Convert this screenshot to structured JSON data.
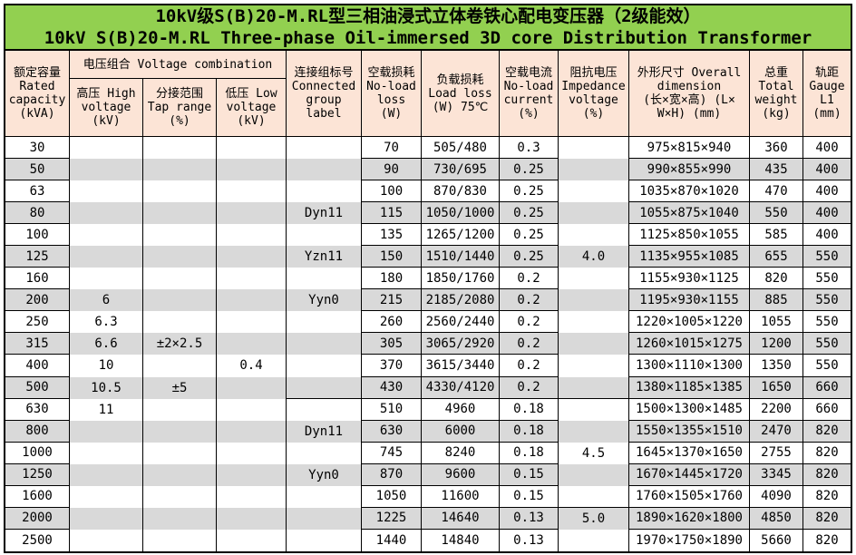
{
  "title": {
    "line1": "10kV级S(B)20-M.RL型三相油浸式立体卷铁心配电变压器（2级能效）",
    "line2": "10kV S(B)20-M.RL Three-phase Oil-immersed 3D core Distribution Transformer"
  },
  "colors": {
    "title_bg": "#92d050",
    "header_bg": "#fce4d6",
    "stripe": "#d9d9d9",
    "border": "#000000",
    "text": "#000000"
  },
  "table": {
    "headers": {
      "rated_capacity": "额定容量\nRated\ncapacity\n(kVA)",
      "voltage_combination": "电压组合 Voltage combination",
      "high_voltage": "高压 High\nvoltage\n(kV)",
      "tap_range": "分接范围\nTap range\n(%)",
      "low_voltage": "低压 Low\nvoltage\n(kV)",
      "connected_group": "连接组标号\nConnected\ngroup\nlabel",
      "no_load_loss": "空载损耗\nNo-load\nloss\n(W)",
      "load_loss": "负载损耗\nLoad loss\n(W) 75℃",
      "no_load_current": "空载电流\nNo-load\ncurrent\n(%)",
      "impedance_voltage": "阻抗电压\nImpedance\nvoltage\n(%)",
      "overall_dimension": "外形尺寸 Overall\ndimension\n(长×宽×高) (L×\nW×H) (mm)",
      "total_weight": "总重\nTotal\nweight\n(kg)",
      "gauge": "轨距\nGauge\nL1\n(mm)"
    },
    "merge_separators": {
      "group_after_rows": [
        12
      ],
      "impedance_after_rows": [
        12,
        17
      ]
    },
    "rows": [
      {
        "capacity": "30",
        "hv": "",
        "tap": "",
        "lv": "",
        "group": "",
        "noload_loss": "70",
        "load_loss": "505/480",
        "noload_current": "0.3",
        "impedance": "",
        "dimension": "975×815×940",
        "weight": "360",
        "gauge": "400"
      },
      {
        "capacity": "50",
        "hv": "",
        "tap": "",
        "lv": "",
        "group": "",
        "noload_loss": "90",
        "load_loss": "730/695",
        "noload_current": "0.25",
        "impedance": "",
        "dimension": "990×855×990",
        "weight": "435",
        "gauge": "400"
      },
      {
        "capacity": "63",
        "hv": "",
        "tap": "",
        "lv": "",
        "group": "",
        "noload_loss": "100",
        "load_loss": "870/830",
        "noload_current": "0.25",
        "impedance": "",
        "dimension": "1035×870×1020",
        "weight": "470",
        "gauge": "400"
      },
      {
        "capacity": "80",
        "hv": "",
        "tap": "",
        "lv": "",
        "group": "Dyn11",
        "noload_loss": "115",
        "load_loss": "1050/1000",
        "noload_current": "0.25",
        "impedance": "",
        "dimension": "1055×875×1040",
        "weight": "550",
        "gauge": "400"
      },
      {
        "capacity": "100",
        "hv": "",
        "tap": "",
        "lv": "",
        "group": "",
        "noload_loss": "135",
        "load_loss": "1265/1200",
        "noload_current": "0.25",
        "impedance": "",
        "dimension": "1125×850×1055",
        "weight": "585",
        "gauge": "400"
      },
      {
        "capacity": "125",
        "hv": "",
        "tap": "",
        "lv": "",
        "group": "Yzn11",
        "noload_loss": "150",
        "load_loss": "1510/1440",
        "noload_current": "0.25",
        "impedance": "4.0",
        "dimension": "1135×955×1085",
        "weight": "655",
        "gauge": "550"
      },
      {
        "capacity": "160",
        "hv": "",
        "tap": "",
        "lv": "",
        "group": "",
        "noload_loss": "180",
        "load_loss": "1850/1760",
        "noload_current": "0.2",
        "impedance": "",
        "dimension": "1155×930×1125",
        "weight": "820",
        "gauge": "550"
      },
      {
        "capacity": "200",
        "hv": "6",
        "tap": "",
        "lv": "",
        "group": "Yyn0",
        "noload_loss": "215",
        "load_loss": "2185/2080",
        "noload_current": "0.2",
        "impedance": "",
        "dimension": "1195×930×1155",
        "weight": "885",
        "gauge": "550"
      },
      {
        "capacity": "250",
        "hv": "6.3",
        "tap": "",
        "lv": "",
        "group": "",
        "noload_loss": "260",
        "load_loss": "2560/2440",
        "noload_current": "0.2",
        "impedance": "",
        "dimension": "1220×1005×1220",
        "weight": "1055",
        "gauge": "550"
      },
      {
        "capacity": "315",
        "hv": "6.6",
        "tap": "±2×2.5",
        "lv": "",
        "group": "",
        "noload_loss": "305",
        "load_loss": "3065/2920",
        "noload_current": "0.2",
        "impedance": "",
        "dimension": "1260×1015×1275",
        "weight": "1200",
        "gauge": "550"
      },
      {
        "capacity": "400",
        "hv": "10",
        "tap": "",
        "lv": "0.4",
        "group": "",
        "noload_loss": "370",
        "load_loss": "3615/3440",
        "noload_current": "0.2",
        "impedance": "",
        "dimension": "1300×1110×1300",
        "weight": "1350",
        "gauge": "550"
      },
      {
        "capacity": "500",
        "hv": "10.5",
        "tap": "±5",
        "lv": "",
        "group": "",
        "noload_loss": "430",
        "load_loss": "4330/4120",
        "noload_current": "0.2",
        "impedance": "",
        "dimension": "1380×1185×1385",
        "weight": "1650",
        "gauge": "660"
      },
      {
        "capacity": "630",
        "hv": "11",
        "tap": "",
        "lv": "",
        "group": "",
        "noload_loss": "510",
        "load_loss": "4960",
        "noload_current": "0.18",
        "impedance": "",
        "dimension": "1500×1300×1485",
        "weight": "2200",
        "gauge": "660"
      },
      {
        "capacity": "800",
        "hv": "",
        "tap": "",
        "lv": "",
        "group": "Dyn11",
        "noload_loss": "630",
        "load_loss": "6000",
        "noload_current": "0.18",
        "impedance": "",
        "dimension": "1550×1355×1510",
        "weight": "2470",
        "gauge": "820"
      },
      {
        "capacity": "1000",
        "hv": "",
        "tap": "",
        "lv": "",
        "group": "",
        "noload_loss": "745",
        "load_loss": "8240",
        "noload_current": "0.18",
        "impedance": "4.5",
        "dimension": "1645×1370×1650",
        "weight": "2755",
        "gauge": "820"
      },
      {
        "capacity": "1250",
        "hv": "",
        "tap": "",
        "lv": "",
        "group": "Yyn0",
        "noload_loss": "870",
        "load_loss": "9600",
        "noload_current": "0.15",
        "impedance": "",
        "dimension": "1670×1445×1720",
        "weight": "3345",
        "gauge": "820"
      },
      {
        "capacity": "1600",
        "hv": "",
        "tap": "",
        "lv": "",
        "group": "",
        "noload_loss": "1050",
        "load_loss": "11600",
        "noload_current": "0.15",
        "impedance": "",
        "dimension": "1760×1505×1760",
        "weight": "4090",
        "gauge": "820"
      },
      {
        "capacity": "2000",
        "hv": "",
        "tap": "",
        "lv": "",
        "group": "",
        "noload_loss": "1225",
        "load_loss": "14640",
        "noload_current": "0.13",
        "impedance": "5.0",
        "dimension": "1890×1620×1800",
        "weight": "4850",
        "gauge": "820"
      },
      {
        "capacity": "2500",
        "hv": "",
        "tap": "",
        "lv": "",
        "group": "",
        "noload_loss": "1440",
        "load_loss": "14840",
        "noload_current": "0.13",
        "impedance": "",
        "dimension": "1970×1750×1890",
        "weight": "5660",
        "gauge": "820"
      }
    ]
  }
}
